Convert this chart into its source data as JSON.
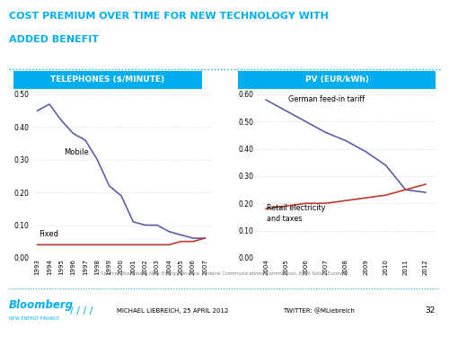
{
  "title_line1": "COST PREMIUM OVER TIME FOR NEW TECHNOLOGY WITH",
  "title_line2": "ADDED BENEFIT",
  "title_color": "#00AEEF",
  "bg_color": "#FFFFFF",
  "separator_color": "#00AEEF",
  "left_panel_title": "TELEPHONES ($/MINUTE)",
  "right_panel_title": "PV (EUR/kWh)",
  "panel_title_bg": "#00AEEF",
  "panel_title_color": "#FFFFFF",
  "tel_years": [
    1993,
    1994,
    1995,
    1996,
    1997,
    1998,
    1999,
    2000,
    2001,
    2002,
    2003,
    2004,
    2005,
    2006,
    2007
  ],
  "tel_mobile": [
    0.45,
    0.47,
    0.42,
    0.38,
    0.36,
    0.3,
    0.22,
    0.19,
    0.11,
    0.1,
    0.1,
    0.08,
    0.07,
    0.06,
    0.06
  ],
  "tel_fixed": [
    0.04,
    0.04,
    0.04,
    0.04,
    0.04,
    0.04,
    0.04,
    0.04,
    0.04,
    0.04,
    0.04,
    0.04,
    0.05,
    0.05,
    0.06
  ],
  "tel_mobile_color": "#5B5EA6",
  "tel_fixed_color": "#C0392B",
  "tel_ylim": [
    0.0,
    0.5
  ],
  "tel_yticks": [
    0.0,
    0.1,
    0.2,
    0.3,
    0.4,
    0.5
  ],
  "tel_mobile_label": "Mobile",
  "tel_fixed_label": "Fixed",
  "pv_years": [
    2004,
    2005,
    2006,
    2007,
    2008,
    2009,
    2010,
    2011,
    2012
  ],
  "pv_feedin": [
    0.58,
    0.54,
    0.5,
    0.46,
    0.43,
    0.39,
    0.34,
    0.25,
    0.24
  ],
  "pv_retail": [
    0.18,
    0.19,
    0.2,
    0.2,
    0.21,
    0.22,
    0.23,
    0.25,
    0.27
  ],
  "pv_feedin_color": "#5B5EA6",
  "pv_retail_color": "#C0392B",
  "pv_ylim": [
    0.0,
    0.6
  ],
  "pv_yticks": [
    0.0,
    0.1,
    0.2,
    0.3,
    0.4,
    0.5,
    0.6
  ],
  "pv_feedin_label": "German feed-in tariff",
  "pv_retail_label1": "Retail electricity",
  "pv_retail_label2": "and taxes",
  "source_text": "Source: Bloomberg New Energy Finance, Federal Communications Commission, BSW Solar, Eurostat",
  "footer_logo": "Bloomberg",
  "footer_sub": "NEW ENERGY FINANCE",
  "footer_slashes": "/ / / /",
  "footer_center": "MICHAEL LIEBREICH, 25 APRIL 2012",
  "footer_right": "TWITTER: @MLiebreich",
  "footer_page": "32",
  "grid_color": "#CCCCCC",
  "grid_style": ":"
}
